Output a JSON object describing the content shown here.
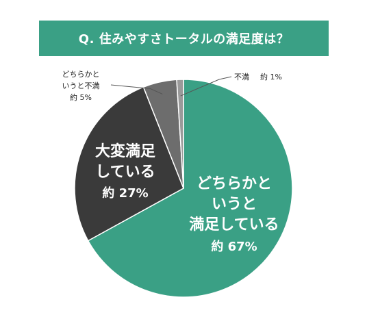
{
  "title": "Q. 住みやすさトータルの満足度は？",
  "chart_data": {
    "type": "pie",
    "slices": [
      {
        "name_lines": [
          "どちらかと",
          "いうと",
          "満足している"
        ],
        "value": 67,
        "value_label": "約 67%",
        "color": "#3aa085"
      },
      {
        "name_lines": [
          "大変満足",
          "している"
        ],
        "value": 27,
        "value_label": "約 27%",
        "color": "#3a3a3a"
      },
      {
        "name_lines": [
          "どちらかと",
          "いうと不満"
        ],
        "value": 5,
        "value_label": "約 5%",
        "color": "#6d6d6d"
      },
      {
        "name_lines": [
          "不満"
        ],
        "value": 1,
        "value_label": "約 1%",
        "color": "#9a9a9a"
      }
    ]
  }
}
